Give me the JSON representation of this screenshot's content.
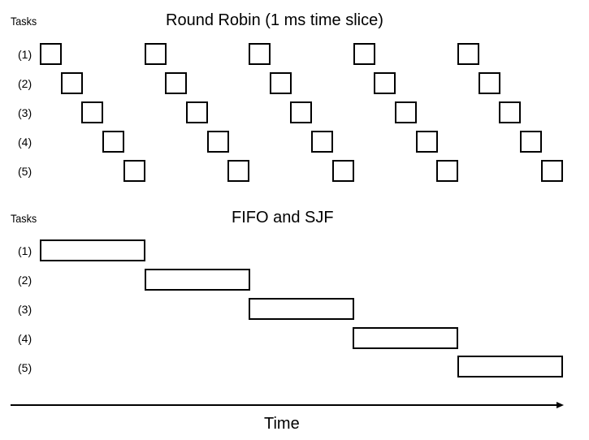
{
  "round_robin": {
    "tasks_label": "Tasks",
    "title": "Round Robin (1 ms time slice)",
    "task_labels": [
      "(1)",
      "(2)",
      "(3)",
      "(4)",
      "(5)"
    ],
    "slices_per_task": 5
  },
  "fifo_sjf": {
    "tasks_label": "Tasks",
    "title": "FIFO and SJF",
    "task_labels": [
      "(1)",
      "(2)",
      "(3)",
      "(4)",
      "(5)"
    ]
  },
  "axis": {
    "label": "Time"
  }
}
